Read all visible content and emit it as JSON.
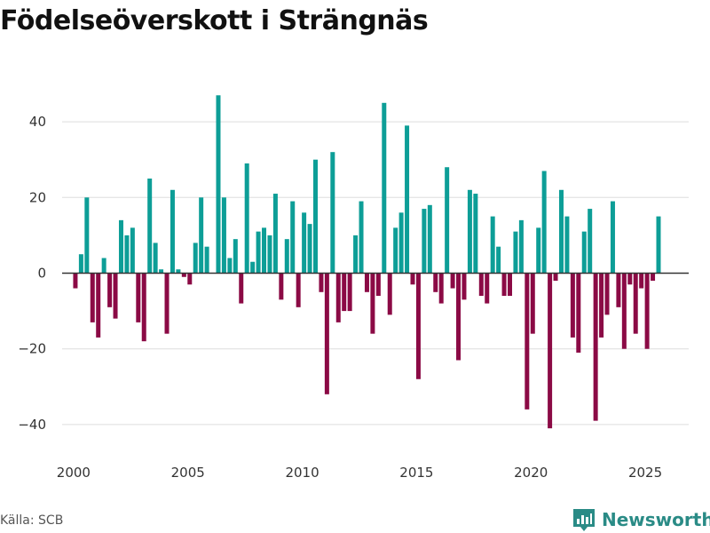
{
  "title": "Födelseöverskott i Strängnäs",
  "source": "Källa: SCB",
  "brand": "Newsworthy",
  "colors": {
    "positive": "#0d9e97",
    "negative": "#8b0a45",
    "brand": "#2a8b86"
  },
  "chart_data": {
    "type": "bar",
    "title": "Födelseöverskott i Strängnäs",
    "xlabel": "",
    "ylabel": "",
    "ylim": [
      -50,
      50
    ],
    "xlim": [
      1999.5,
      2026.9
    ],
    "y_ticks": [
      40,
      20,
      0,
      -20,
      -40
    ],
    "y_tick_labels": [
      "40",
      "20",
      "0",
      "−20",
      "−40"
    ],
    "x_ticks": [
      2000,
      2005,
      2010,
      2015,
      2020,
      2025
    ],
    "x_tick_labels": [
      "2000",
      "2005",
      "2010",
      "2015",
      "2020",
      "2025"
    ],
    "grid": true,
    "series": [
      {
        "name": "Födelseöverskott",
        "x": [
          2000.08,
          2000.33,
          2000.58,
          2000.83,
          2001.08,
          2001.33,
          2001.58,
          2001.83,
          2002.08,
          2002.33,
          2002.58,
          2002.83,
          2003.08,
          2003.33,
          2003.58,
          2003.83,
          2004.08,
          2004.33,
          2004.58,
          2004.83,
          2005.08,
          2005.33,
          2005.58,
          2005.83,
          2006.08,
          2006.33,
          2006.58,
          2006.83,
          2007.08,
          2007.33,
          2007.58,
          2007.83,
          2008.08,
          2008.33,
          2008.58,
          2008.83,
          2009.08,
          2009.33,
          2009.58,
          2009.83,
          2010.08,
          2010.33,
          2010.58,
          2010.83,
          2011.08,
          2011.33,
          2011.58,
          2011.83,
          2012.08,
          2012.33,
          2012.58,
          2012.83,
          2013.08,
          2013.33,
          2013.58,
          2013.83,
          2014.08,
          2014.33,
          2014.58,
          2014.83,
          2015.08,
          2015.33,
          2015.58,
          2015.83,
          2016.08,
          2016.33,
          2016.58,
          2016.83,
          2017.08,
          2017.33,
          2017.58,
          2017.83,
          2018.08,
          2018.33,
          2018.58,
          2018.83,
          2019.08,
          2019.33,
          2019.58,
          2019.83,
          2020.08,
          2020.33,
          2020.58,
          2020.83,
          2021.08,
          2021.33,
          2021.58,
          2021.83,
          2022.08,
          2022.33,
          2022.58,
          2022.83,
          2023.08,
          2023.33,
          2023.58,
          2023.83,
          2024.08,
          2024.33,
          2024.58,
          2024.83,
          2025.08,
          2025.33,
          2025.58
        ],
        "values": [
          -4,
          5,
          20,
          -13,
          -17,
          4,
          -9,
          -12,
          14,
          10,
          12,
          -13,
          -18,
          25,
          8,
          1,
          -16,
          22,
          1,
          -1,
          -3,
          8,
          20,
          7,
          0,
          47,
          20,
          4,
          9,
          -8,
          29,
          3,
          11,
          12,
          10,
          21,
          -7,
          9,
          19,
          -9,
          16,
          13,
          30,
          -5,
          -32,
          32,
          -13,
          -10,
          -10,
          10,
          19,
          -5,
          -16,
          -6,
          45,
          -11,
          12,
          16,
          39,
          -3,
          -28,
          17,
          18,
          -5,
          -8,
          28,
          -4,
          -23,
          -7,
          22,
          21,
          -6,
          -8,
          15,
          7,
          -6,
          -6,
          11,
          14,
          -36,
          -16,
          12,
          27,
          -41,
          -2,
          22,
          15,
          -17,
          -21,
          11,
          17,
          -39,
          -17,
          -11,
          19,
          -9,
          -20,
          -3,
          -16,
          -4,
          -20,
          -2,
          15
        ]
      }
    ]
  }
}
